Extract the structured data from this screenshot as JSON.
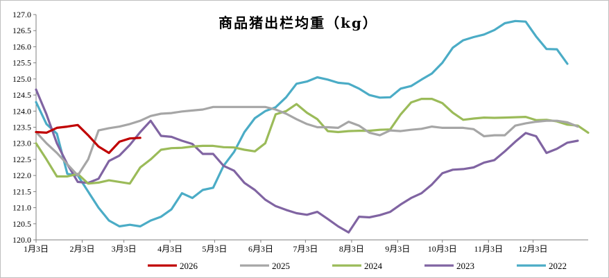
{
  "chart_data": {
    "type": "line",
    "title": "商品猪出栏均重（kg）",
    "xlabel": "",
    "ylabel": "",
    "ylim": [
      120.0,
      127.0
    ],
    "yticks": [
      "120.0",
      "120.5",
      "121.0",
      "121.5",
      "122.0",
      "122.5",
      "123.0",
      "123.5",
      "124.0",
      "124.5",
      "125.0",
      "125.5",
      "126.0",
      "126.5",
      "127.0"
    ],
    "xlim": [
      1,
      54
    ],
    "xticks": [
      {
        "label": "1月3日",
        "x": 1
      },
      {
        "label": "2月3日",
        "x": 5.43
      },
      {
        "label": "3月3日",
        "x": 9.43
      },
      {
        "label": "4月3日",
        "x": 13.86
      },
      {
        "label": "5月3日",
        "x": 18.14
      },
      {
        "label": "6月3日",
        "x": 22.57
      },
      {
        "label": "7月3日",
        "x": 26.86
      },
      {
        "label": "8月3日",
        "x": 31.29
      },
      {
        "label": "9月3日",
        "x": 35.71
      },
      {
        "label": "10月3日",
        "x": 40.0
      },
      {
        "label": "11月3日",
        "x": 44.43
      },
      {
        "label": "12月3日",
        "x": 48.71
      }
    ],
    "grid": false,
    "legend_position": "bottom",
    "series": [
      {
        "name": "2026",
        "color": "#C00000",
        "points": [
          [
            1,
            123.35
          ],
          [
            2,
            123.33
          ],
          [
            3,
            123.48
          ],
          [
            4,
            123.52
          ],
          [
            5,
            123.57
          ],
          [
            6,
            123.25
          ],
          [
            7,
            122.9
          ],
          [
            8,
            122.7
          ],
          [
            9,
            123.05
          ],
          [
            10,
            123.15
          ],
          [
            11,
            123.17
          ]
        ]
      },
      {
        "name": "2025",
        "color": "#A6A6A6",
        "points": [
          [
            1,
            123.35
          ],
          [
            2,
            123.0
          ],
          [
            3,
            122.7
          ],
          [
            4,
            122.35
          ],
          [
            5,
            122.0
          ],
          [
            6,
            122.5
          ],
          [
            7,
            123.4
          ],
          [
            8,
            123.47
          ],
          [
            9,
            123.52
          ],
          [
            10,
            123.6
          ],
          [
            11,
            123.7
          ],
          [
            12,
            123.85
          ],
          [
            13,
            123.92
          ],
          [
            14,
            123.94
          ],
          [
            15,
            123.99
          ],
          [
            16,
            124.02
          ],
          [
            17,
            124.05
          ],
          [
            18,
            124.13
          ],
          [
            19,
            124.13
          ],
          [
            20,
            124.13
          ],
          [
            21,
            124.13
          ],
          [
            22,
            124.13
          ],
          [
            23,
            124.13
          ],
          [
            24,
            124.05
          ],
          [
            25,
            123.92
          ],
          [
            26,
            123.75
          ],
          [
            27,
            123.6
          ],
          [
            28,
            123.5
          ],
          [
            29,
            123.5
          ],
          [
            30,
            123.48
          ],
          [
            31,
            123.67
          ],
          [
            32,
            123.55
          ],
          [
            33,
            123.33
          ],
          [
            34,
            123.25
          ],
          [
            35,
            123.4
          ],
          [
            36,
            123.38
          ],
          [
            37,
            123.42
          ],
          [
            38,
            123.45
          ],
          [
            39,
            123.52
          ],
          [
            40,
            123.48
          ],
          [
            41,
            123.48
          ],
          [
            42,
            123.48
          ],
          [
            43,
            123.44
          ],
          [
            44,
            123.22
          ],
          [
            45,
            123.25
          ],
          [
            46,
            123.25
          ],
          [
            47,
            123.55
          ],
          [
            48,
            123.62
          ],
          [
            49,
            123.67
          ],
          [
            50,
            123.7
          ],
          [
            51,
            123.7
          ],
          [
            52,
            123.65
          ],
          [
            53,
            123.52
          ]
        ]
      },
      {
        "name": "2024",
        "color": "#9BBB59",
        "points": [
          [
            1,
            123.0
          ],
          [
            2,
            122.5
          ],
          [
            3,
            121.97
          ],
          [
            4,
            121.97
          ],
          [
            5,
            122.05
          ],
          [
            6,
            121.75
          ],
          [
            7,
            121.78
          ],
          [
            8,
            121.85
          ],
          [
            9,
            121.8
          ],
          [
            10,
            121.75
          ],
          [
            11,
            122.25
          ],
          [
            12,
            122.5
          ],
          [
            13,
            122.8
          ],
          [
            14,
            122.85
          ],
          [
            15,
            122.86
          ],
          [
            16,
            122.9
          ],
          [
            17,
            122.92
          ],
          [
            18,
            122.92
          ],
          [
            19,
            122.88
          ],
          [
            20,
            122.87
          ],
          [
            21,
            122.8
          ],
          [
            22,
            122.75
          ],
          [
            23,
            123.0
          ],
          [
            24,
            123.9
          ],
          [
            25,
            124.0
          ],
          [
            26,
            124.22
          ],
          [
            27,
            123.95
          ],
          [
            28,
            123.75
          ],
          [
            29,
            123.38
          ],
          [
            30,
            123.35
          ],
          [
            31,
            123.38
          ],
          [
            32,
            123.39
          ],
          [
            33,
            123.39
          ],
          [
            34,
            123.42
          ],
          [
            35,
            123.43
          ],
          [
            36,
            123.9
          ],
          [
            37,
            124.27
          ],
          [
            38,
            124.38
          ],
          [
            39,
            124.38
          ],
          [
            40,
            124.25
          ],
          [
            41,
            123.95
          ],
          [
            42,
            123.73
          ],
          [
            43,
            123.77
          ],
          [
            44,
            123.8
          ],
          [
            45,
            123.79
          ],
          [
            46,
            123.8
          ],
          [
            47,
            123.81
          ],
          [
            48,
            123.82
          ],
          [
            49,
            123.72
          ],
          [
            50,
            123.73
          ],
          [
            51,
            123.68
          ],
          [
            52,
            123.58
          ],
          [
            53,
            123.55
          ],
          [
            54,
            123.33
          ]
        ]
      },
      {
        "name": "2023",
        "color": "#8064A2",
        "points": [
          [
            1,
            124.67
          ],
          [
            2,
            123.9
          ],
          [
            3,
            123.0
          ],
          [
            4,
            122.35
          ],
          [
            5,
            121.8
          ],
          [
            6,
            121.77
          ],
          [
            7,
            121.9
          ],
          [
            8,
            122.45
          ],
          [
            9,
            122.62
          ],
          [
            10,
            122.95
          ],
          [
            11,
            123.35
          ],
          [
            12,
            123.7
          ],
          [
            13,
            123.23
          ],
          [
            14,
            123.2
          ],
          [
            15,
            123.08
          ],
          [
            16,
            122.98
          ],
          [
            17,
            122.67
          ],
          [
            18,
            122.67
          ],
          [
            19,
            122.3
          ],
          [
            20,
            122.15
          ],
          [
            21,
            121.77
          ],
          [
            22,
            121.55
          ],
          [
            23,
            121.25
          ],
          [
            24,
            121.05
          ],
          [
            25,
            120.93
          ],
          [
            26,
            120.83
          ],
          [
            27,
            120.78
          ],
          [
            28,
            120.87
          ],
          [
            29,
            120.65
          ],
          [
            30,
            120.42
          ],
          [
            31,
            120.23
          ],
          [
            32,
            120.72
          ],
          [
            33,
            120.7
          ],
          [
            34,
            120.77
          ],
          [
            35,
            120.87
          ],
          [
            36,
            121.1
          ],
          [
            37,
            121.3
          ],
          [
            38,
            121.45
          ],
          [
            39,
            121.72
          ],
          [
            40,
            122.07
          ],
          [
            41,
            122.18
          ],
          [
            42,
            122.2
          ],
          [
            43,
            122.25
          ],
          [
            44,
            122.4
          ],
          [
            45,
            122.48
          ],
          [
            46,
            122.75
          ],
          [
            47,
            123.05
          ],
          [
            48,
            123.32
          ],
          [
            49,
            123.22
          ],
          [
            50,
            122.7
          ],
          [
            51,
            122.83
          ],
          [
            52,
            123.02
          ],
          [
            53,
            123.08
          ]
        ]
      },
      {
        "name": "2022",
        "color": "#4BACC6",
        "points": [
          [
            1,
            124.28
          ],
          [
            2,
            123.6
          ],
          [
            3,
            123.3
          ],
          [
            4,
            122.05
          ],
          [
            5,
            122.0
          ],
          [
            6,
            121.5
          ],
          [
            7,
            121.0
          ],
          [
            8,
            120.6
          ],
          [
            9,
            120.42
          ],
          [
            10,
            120.47
          ],
          [
            11,
            120.42
          ],
          [
            12,
            120.6
          ],
          [
            13,
            120.72
          ],
          [
            14,
            120.95
          ],
          [
            15,
            121.45
          ],
          [
            16,
            121.3
          ],
          [
            17,
            121.55
          ],
          [
            18,
            121.62
          ],
          [
            19,
            122.3
          ],
          [
            20,
            122.73
          ],
          [
            21,
            123.35
          ],
          [
            22,
            123.78
          ],
          [
            23,
            124.0
          ],
          [
            24,
            124.12
          ],
          [
            25,
            124.43
          ],
          [
            26,
            124.85
          ],
          [
            27,
            124.92
          ],
          [
            28,
            125.05
          ],
          [
            29,
            124.98
          ],
          [
            30,
            124.88
          ],
          [
            31,
            124.85
          ],
          [
            32,
            124.7
          ],
          [
            33,
            124.5
          ],
          [
            34,
            124.42
          ],
          [
            35,
            124.43
          ],
          [
            36,
            124.7
          ],
          [
            37,
            124.78
          ],
          [
            38,
            124.98
          ],
          [
            39,
            125.17
          ],
          [
            40,
            125.5
          ],
          [
            41,
            125.97
          ],
          [
            42,
            126.2
          ],
          [
            43,
            126.3
          ],
          [
            44,
            126.38
          ],
          [
            45,
            126.52
          ],
          [
            46,
            126.73
          ],
          [
            47,
            126.8
          ],
          [
            48,
            126.78
          ],
          [
            49,
            126.32
          ],
          [
            50,
            125.93
          ],
          [
            51,
            125.92
          ],
          [
            52,
            125.47
          ]
        ]
      }
    ]
  }
}
